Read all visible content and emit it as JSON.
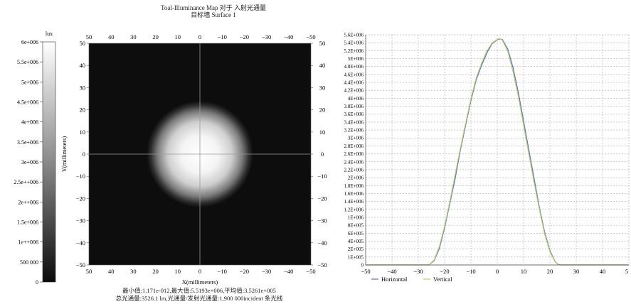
{
  "figure": {
    "title_line1": "Toal-Illuminance Map 对于 入射光通量",
    "title_line2": "目标墙 Surface 1",
    "stats_line1": "最小值:1.171e-012,最大值:5.5193e+006,平均值:3.5261e+005",
    "stats_line2": "总光通量:3526.1 lm,光通量/发射光通量:1,900 000incident 条光线"
  },
  "chart_data": [
    {
      "type": "heatmap",
      "colorbar": {
        "unit_label": "lux",
        "range": [
          0,
          6000000
        ],
        "ticks": [
          {
            "value": 6000000,
            "label": "6e+006"
          },
          {
            "value": 5500000,
            "label": "5.5e+006"
          },
          {
            "value": 5000000,
            "label": "5e+006"
          },
          {
            "value": 4500000,
            "label": "4.5e+006"
          },
          {
            "value": 4000000,
            "label": "4e+006"
          },
          {
            "value": 3500000,
            "label": "3.5e+006"
          },
          {
            "value": 3000000,
            "label": "3e+006"
          },
          {
            "value": 2500000,
            "label": "2.5e++006"
          },
          {
            "value": 2000000,
            "label": "2e++006"
          },
          {
            "value": 1500000,
            "label": "1.5e+006"
          },
          {
            "value": 1000000,
            "label": "1e++006"
          },
          {
            "value": 500000,
            "label": "500 000"
          },
          {
            "value": 0,
            "label": "0"
          }
        ]
      },
      "xlabel": "X(millimeters)",
      "ylabel": "Y(millimeters)",
      "xlim": [
        50,
        -50
      ],
      "ylim": [
        -50,
        50
      ],
      "x_ticks": [
        "50",
        "40",
        "30",
        "20",
        "10",
        "0",
        "−10",
        "−20",
        "−30",
        "−40",
        "−50"
      ],
      "y_ticks_left": [
        "50",
        "40",
        "30",
        "20",
        "10",
        "0",
        "−10",
        "−20",
        "−30",
        "−40",
        "−50"
      ],
      "y_ticks_right": [
        "50",
        "40",
        "30",
        "20",
        "10",
        "0",
        "−10",
        "−20",
        "−30",
        "−40",
        "−50"
      ],
      "spot": {
        "center_x": 0,
        "center_y": 0,
        "radius_mm": 24,
        "peak": 5519300
      },
      "crosshair": true
    },
    {
      "type": "line",
      "xlim": [
        -50,
        50
      ],
      "ylim": [
        0,
        5600000
      ],
      "grid": true,
      "legend_position": "bottom-left",
      "x_ticks": [
        "−50",
        "−40",
        "−30",
        "−20",
        "−10",
        "0",
        "10",
        "20",
        "30",
        "40",
        "5"
      ],
      "y_ticks": [
        "5.6E+006",
        "5.4E+006",
        "5.2E+006",
        "5E+006",
        "4.8E+006",
        "4.6E+006",
        "4.4E+006",
        "4.2E+006",
        "4E+006",
        "3.8E+006",
        "3.6E+006",
        "3.4E+006",
        "3.2E+006",
        "3E+006",
        "2.8E+006",
        "2.6E+006",
        "2.4E+006",
        "2.2E+006",
        "2E+006",
        "1.8E+006",
        "1.6E+006",
        "1.4E+006",
        "1.2E+006",
        "1E+006",
        "8E+005",
        "6E+005",
        "4E+005",
        "2E+005",
        "1E+005",
        "0"
      ],
      "series": [
        {
          "name": "Horizontal",
          "color": "#5a6fc4",
          "x": [
            -50,
            -26,
            -24,
            -22,
            -20,
            -18,
            -16,
            -14,
            -12,
            -10,
            -8,
            -6,
            -4,
            -2,
            0,
            1,
            2,
            4,
            6,
            8,
            10,
            12,
            14,
            16,
            18,
            20,
            22,
            23,
            24,
            50
          ],
          "y": [
            0,
            0,
            100000,
            400000,
            900000,
            1500000,
            2100000,
            2800000,
            3400000,
            4000000,
            4500000,
            4850000,
            5150000,
            5380000,
            5480000,
            5500000,
            5480000,
            5250000,
            4800000,
            4200000,
            3500000,
            2800000,
            2100000,
            1400000,
            800000,
            350000,
            80000,
            20000,
            0,
            0
          ]
        },
        {
          "name": "Vertical",
          "color": "#b9cc6a",
          "x": [
            -50,
            -26,
            -24,
            -22,
            -20,
            -18,
            -16,
            -14,
            -12,
            -10,
            -8,
            -6,
            -4,
            -2,
            0,
            1,
            2,
            4,
            6,
            8,
            10,
            12,
            14,
            16,
            18,
            20,
            22,
            23,
            24,
            50
          ],
          "y": [
            0,
            0,
            120000,
            450000,
            950000,
            1550000,
            2200000,
            2850000,
            3450000,
            4050000,
            4550000,
            4900000,
            5200000,
            5400000,
            5490000,
            5510000,
            5460000,
            5200000,
            4700000,
            4100000,
            3400000,
            2700000,
            2000000,
            1350000,
            750000,
            320000,
            70000,
            15000,
            0,
            0
          ]
        }
      ]
    }
  ]
}
